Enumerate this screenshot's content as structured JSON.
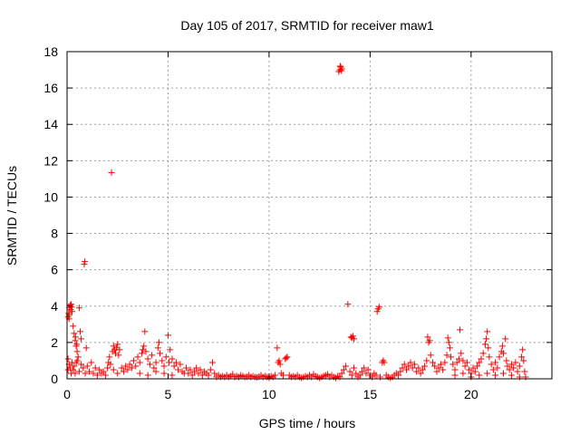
{
  "chart_data": {
    "type": "scatter",
    "title": "Day 105 of 2017, SRMTID for receiver maw1",
    "xlabel": "GPS time / hours",
    "ylabel": "SRMTID / TECUs",
    "xlim": [
      0,
      24
    ],
    "ylim": [
      0,
      18
    ],
    "x_ticks": [
      0,
      5,
      10,
      15,
      20
    ],
    "y_ticks": [
      0,
      2,
      4,
      6,
      8,
      10,
      12,
      14,
      16,
      18
    ],
    "x_tick_labels": [
      "0",
      "5",
      "10",
      "15",
      "20"
    ],
    "y_tick_labels": [
      "0",
      "2",
      "4",
      "6",
      "8",
      "10",
      "12",
      "14",
      "16",
      "18"
    ],
    "grid": true,
    "marker": "+",
    "color": "#ff0000",
    "series": [
      {
        "name": "SRMTID",
        "points": [
          [
            0.05,
            3.4
          ],
          [
            0.08,
            3.6
          ],
          [
            0.1,
            3.3
          ],
          [
            0.12,
            3.9
          ],
          [
            0.15,
            4.05
          ],
          [
            0.18,
            3.8
          ],
          [
            0.2,
            4.1
          ],
          [
            0.22,
            3.95
          ],
          [
            0.25,
            3.7
          ],
          [
            0.1,
            3.5
          ],
          [
            0.3,
            2.9
          ],
          [
            0.35,
            2.5
          ],
          [
            0.4,
            2.1
          ],
          [
            0.45,
            1.8
          ],
          [
            0.5,
            1.5
          ],
          [
            0.55,
            1.2
          ],
          [
            0.42,
            2.3
          ],
          [
            0.48,
            1.9
          ],
          [
            0.6,
            3.9
          ],
          [
            0.65,
            2.6
          ],
          [
            0.7,
            2.2
          ],
          [
            0.05,
            0.5
          ],
          [
            0.1,
            0.8
          ],
          [
            0.15,
            0.6
          ],
          [
            0.2,
            0.3
          ],
          [
            0.25,
            0.9
          ],
          [
            0.05,
            1.1
          ],
          [
            0.3,
            0.5
          ],
          [
            0.35,
            0.7
          ],
          [
            0.4,
            0.3
          ],
          [
            0.45,
            0.9
          ],
          [
            0.5,
            1.0
          ],
          [
            0.6,
            0.4
          ],
          [
            0.7,
            0.8
          ],
          [
            0.8,
            0.6
          ],
          [
            0.9,
            0.3
          ],
          [
            1.0,
            0.7
          ],
          [
            1.1,
            0.4
          ],
          [
            1.2,
            0.9
          ],
          [
            1.3,
            0.3
          ],
          [
            1.4,
            0.6
          ],
          [
            1.5,
            0.2
          ],
          [
            1.6,
            0.5
          ],
          [
            1.7,
            0.3
          ],
          [
            0.85,
            6.3
          ],
          [
            0.88,
            6.45
          ],
          [
            0.95,
            1.7
          ],
          [
            1.8,
            0.4
          ],
          [
            1.9,
            0.2
          ],
          [
            2.0,
            0.6
          ],
          [
            2.05,
            0.9
          ],
          [
            2.1,
            1.2
          ],
          [
            2.15,
            0.8
          ],
          [
            2.2,
            11.35
          ],
          [
            2.25,
            1.5
          ],
          [
            2.3,
            1.8
          ],
          [
            2.35,
            1.6
          ],
          [
            2.4,
            1.4
          ],
          [
            2.45,
            1.7
          ],
          [
            2.5,
            1.9
          ],
          [
            2.55,
            1.3
          ],
          [
            2.6,
            1.6
          ],
          [
            2.3,
            0.5
          ],
          [
            2.5,
            0.3
          ],
          [
            2.7,
            0.6
          ],
          [
            2.8,
            0.4
          ],
          [
            2.9,
            0.7
          ],
          [
            3.0,
            0.5
          ],
          [
            3.1,
            0.8
          ],
          [
            3.2,
            0.6
          ],
          [
            3.3,
            1.0
          ],
          [
            3.4,
            0.7
          ],
          [
            3.5,
            1.2
          ],
          [
            3.6,
            0.9
          ],
          [
            3.7,
            1.4
          ],
          [
            3.75,
            1.6
          ],
          [
            3.8,
            1.8
          ],
          [
            3.85,
            2.6
          ],
          [
            3.9,
            1.5
          ],
          [
            4.0,
            1.1
          ],
          [
            4.1,
            0.8
          ],
          [
            4.2,
            1.3
          ],
          [
            4.3,
            0.6
          ],
          [
            4.4,
            0.9
          ],
          [
            4.5,
            1.7
          ],
          [
            4.55,
            2.0
          ],
          [
            4.6,
            1.4
          ],
          [
            4.7,
            1.0
          ],
          [
            4.8,
            0.7
          ],
          [
            4.9,
            1.2
          ],
          [
            5.0,
            2.4
          ],
          [
            5.05,
            0.9
          ],
          [
            5.1,
            1.6
          ],
          [
            5.2,
            1.1
          ],
          [
            5.3,
            0.7
          ],
          [
            5.4,
            0.9
          ],
          [
            5.5,
            0.5
          ],
          [
            5.6,
            0.8
          ],
          [
            5.7,
            0.4
          ],
          [
            3.6,
            0.3
          ],
          [
            4.0,
            0.2
          ],
          [
            4.4,
            0.4
          ],
          [
            4.8,
            0.3
          ],
          [
            5.2,
            0.2
          ],
          [
            5.8,
            0.3
          ],
          [
            5.9,
            0.6
          ],
          [
            6.0,
            0.3
          ],
          [
            6.1,
            0.5
          ],
          [
            6.2,
            0.2
          ],
          [
            6.3,
            0.4
          ],
          [
            6.4,
            0.6
          ],
          [
            6.5,
            0.3
          ],
          [
            6.6,
            0.5
          ],
          [
            6.7,
            0.2
          ],
          [
            6.8,
            0.4
          ],
          [
            6.9,
            0.3
          ],
          [
            7.0,
            0.2
          ],
          [
            7.1,
            0.5
          ],
          [
            7.2,
            0.9
          ],
          [
            7.3,
            0.3
          ],
          [
            7.4,
            0.1
          ],
          [
            7.5,
            0.2
          ],
          [
            7.6,
            0.1
          ],
          [
            7.7,
            0.15
          ],
          [
            7.8,
            0.1
          ],
          [
            7.9,
            0.2
          ],
          [
            8.0,
            0.1
          ],
          [
            8.1,
            0.15
          ],
          [
            8.2,
            0.25
          ],
          [
            8.3,
            0.1
          ],
          [
            8.4,
            0.15
          ],
          [
            8.5,
            0.1
          ],
          [
            8.6,
            0.2
          ],
          [
            8.7,
            0.15
          ],
          [
            8.8,
            0.1
          ],
          [
            8.9,
            0.12
          ],
          [
            9.0,
            0.2
          ],
          [
            9.1,
            0.1
          ],
          [
            9.2,
            0.15
          ],
          [
            9.3,
            0.1
          ],
          [
            9.4,
            0.08
          ],
          [
            9.5,
            0.12
          ],
          [
            9.6,
            0.2
          ],
          [
            9.7,
            0.1
          ],
          [
            9.8,
            0.15
          ],
          [
            9.9,
            0.1
          ],
          [
            10.0,
            0.05
          ],
          [
            10.1,
            0.15
          ],
          [
            10.2,
            0.1
          ],
          [
            10.3,
            0.2
          ],
          [
            10.4,
            1.7
          ],
          [
            10.45,
            0.9
          ],
          [
            10.5,
            1.0
          ],
          [
            10.55,
            0.8
          ],
          [
            10.6,
            0.3
          ],
          [
            10.7,
            0.2
          ],
          [
            10.8,
            1.1
          ],
          [
            10.85,
            1.15
          ],
          [
            10.9,
            1.2
          ],
          [
            11.0,
            0.2
          ],
          [
            11.1,
            0.1
          ],
          [
            11.2,
            0.15
          ],
          [
            11.3,
            0.1
          ],
          [
            11.4,
            0.2
          ],
          [
            11.5,
            0.1
          ],
          [
            11.6,
            0.05
          ],
          [
            11.7,
            0.1
          ],
          [
            11.8,
            0.15
          ],
          [
            11.9,
            0.1
          ],
          [
            12.0,
            0.2
          ],
          [
            12.1,
            0.1
          ],
          [
            12.2,
            0.25
          ],
          [
            12.3,
            0.15
          ],
          [
            12.4,
            0.1
          ],
          [
            12.5,
            0.05
          ],
          [
            12.6,
            0.1
          ],
          [
            12.7,
            0.15
          ],
          [
            12.8,
            0.2
          ],
          [
            12.9,
            0.25
          ],
          [
            13.0,
            0.1
          ],
          [
            13.1,
            0.2
          ],
          [
            13.2,
            0.1
          ],
          [
            13.3,
            0.05
          ],
          [
            13.4,
            0.15
          ],
          [
            13.5,
            0.1
          ],
          [
            13.45,
            16.9
          ],
          [
            13.5,
            17.0
          ],
          [
            13.55,
            17.15
          ],
          [
            13.6,
            17.05
          ],
          [
            13.52,
            17.2
          ],
          [
            13.58,
            16.95
          ],
          [
            13.6,
            0.3
          ],
          [
            13.7,
            0.5
          ],
          [
            13.8,
            0.7
          ],
          [
            13.9,
            4.1
          ],
          [
            14.0,
            0.4
          ],
          [
            14.05,
            2.3
          ],
          [
            14.1,
            2.25
          ],
          [
            14.15,
            2.35
          ],
          [
            14.2,
            2.2
          ],
          [
            14.1,
            0.2
          ],
          [
            14.2,
            0.6
          ],
          [
            14.3,
            0.3
          ],
          [
            14.4,
            0.1
          ],
          [
            14.5,
            0.2
          ],
          [
            14.6,
            0.4
          ],
          [
            14.7,
            0.6
          ],
          [
            14.8,
            0.3
          ],
          [
            14.9,
            0.5
          ],
          [
            15.0,
            0.2
          ],
          [
            15.1,
            0.1
          ],
          [
            15.2,
            0.3
          ],
          [
            15.3,
            0.2
          ],
          [
            15.35,
            3.7
          ],
          [
            15.4,
            3.85
          ],
          [
            15.45,
            3.95
          ],
          [
            15.5,
            0.1
          ],
          [
            15.6,
            0.9
          ],
          [
            15.65,
            1.0
          ],
          [
            15.7,
            0.9
          ],
          [
            15.8,
            0.2
          ],
          [
            15.9,
            0.1
          ],
          [
            16.0,
            0.05
          ],
          [
            16.1,
            0.1
          ],
          [
            16.2,
            0.2
          ],
          [
            16.3,
            0.3
          ],
          [
            16.4,
            0.2
          ],
          [
            16.5,
            0.4
          ],
          [
            16.6,
            0.6
          ],
          [
            16.7,
            0.8
          ],
          [
            16.8,
            0.5
          ],
          [
            16.9,
            0.7
          ],
          [
            17.0,
            0.9
          ],
          [
            17.1,
            0.6
          ],
          [
            17.2,
            0.8
          ],
          [
            17.3,
            0.4
          ],
          [
            17.4,
            0.6
          ],
          [
            17.5,
            0.3
          ],
          [
            17.6,
            0.5
          ],
          [
            17.7,
            0.7
          ],
          [
            17.8,
            1.0
          ],
          [
            17.85,
            2.3
          ],
          [
            17.9,
            2.0
          ],
          [
            17.95,
            2.1
          ],
          [
            18.0,
            1.3
          ],
          [
            18.1,
            0.9
          ],
          [
            18.2,
            0.7
          ],
          [
            18.3,
            0.4
          ],
          [
            18.4,
            0.6
          ],
          [
            18.5,
            0.8
          ],
          [
            18.6,
            0.5
          ],
          [
            18.7,
            0.9
          ],
          [
            18.8,
            1.3
          ],
          [
            18.85,
            2.25
          ],
          [
            18.9,
            2.0
          ],
          [
            18.95,
            1.7
          ],
          [
            19.0,
            1.2
          ],
          [
            19.1,
            0.8
          ],
          [
            19.2,
            0.5
          ],
          [
            19.3,
            0.9
          ],
          [
            19.4,
            1.1
          ],
          [
            19.45,
            2.7
          ],
          [
            19.5,
            1.4
          ],
          [
            19.6,
            1.0
          ],
          [
            19.7,
            0.7
          ],
          [
            19.8,
            0.9
          ],
          [
            19.9,
            0.5
          ],
          [
            20.0,
            0.3
          ],
          [
            20.1,
            0.6
          ],
          [
            20.2,
            0.4
          ],
          [
            20.3,
            0.7
          ],
          [
            20.4,
            0.9
          ],
          [
            20.5,
            1.1
          ],
          [
            20.6,
            1.4
          ],
          [
            20.7,
            1.9
          ],
          [
            20.75,
            2.2
          ],
          [
            20.8,
            2.6
          ],
          [
            20.85,
            1.7
          ],
          [
            20.9,
            1.2
          ],
          [
            21.0,
            0.8
          ],
          [
            21.1,
            0.5
          ],
          [
            21.2,
            0.9
          ],
          [
            21.3,
            0.6
          ],
          [
            21.4,
            1.2
          ],
          [
            21.5,
            1.5
          ],
          [
            21.55,
            1.8
          ],
          [
            21.6,
            1.4
          ],
          [
            21.7,
            2.2
          ],
          [
            21.75,
            1.0
          ],
          [
            21.8,
            0.7
          ],
          [
            21.9,
            0.5
          ],
          [
            22.0,
            0.8
          ],
          [
            22.1,
            0.6
          ],
          [
            22.2,
            0.9
          ],
          [
            22.3,
            0.4
          ],
          [
            22.4,
            0.7
          ],
          [
            22.5,
            1.2
          ],
          [
            22.55,
            1.6
          ],
          [
            22.6,
            1.0
          ],
          [
            22.65,
            0.4
          ],
          [
            22.7,
            0.1
          ],
          [
            19.2,
            0.2
          ],
          [
            19.6,
            0.3
          ],
          [
            20.0,
            0.1
          ],
          [
            20.4,
            0.2
          ],
          [
            20.8,
            0.3
          ],
          [
            21.2,
            0.2
          ],
          [
            21.6,
            0.3
          ],
          [
            22.0,
            0.2
          ],
          [
            22.4,
            0.1
          ]
        ]
      }
    ]
  }
}
